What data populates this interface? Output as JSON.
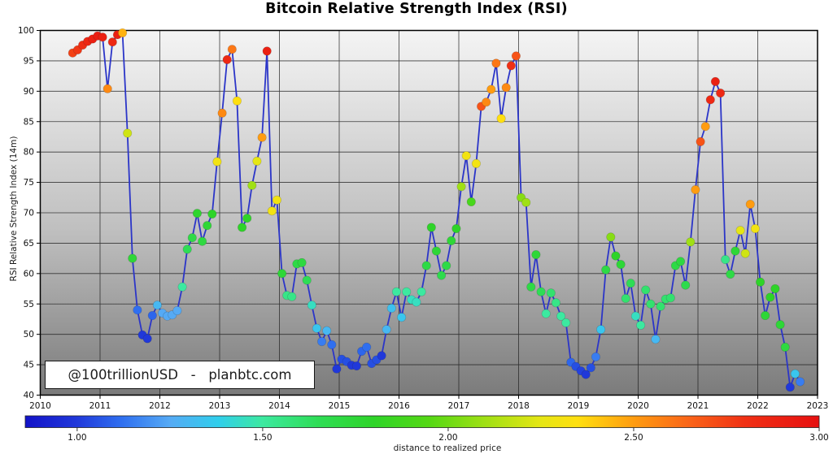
{
  "page": {
    "title": "Bitcoin Relative Strength Index (RSI)"
  },
  "watermark": {
    "text": "@100trillionUSD   -   planbtc.com"
  },
  "chart_data": {
    "type": "line",
    "subtype": "monthly scatter-line with colormapped markers",
    "title": "Bitcoin Relative Strength Index (RSI)",
    "xlabel": "",
    "ylabel": "RSI Relative Strength Index (14m)",
    "grid": true,
    "xlim": [
      2010,
      2023
    ],
    "ylim": [
      40,
      100
    ],
    "x_ticks": [
      2010,
      2011,
      2012,
      2013,
      2014,
      2015,
      2016,
      2017,
      2018,
      2019,
      2020,
      2021,
      2022,
      2023
    ],
    "y_ticks": [
      40,
      45,
      50,
      55,
      60,
      65,
      70,
      75,
      80,
      85,
      90,
      95,
      100
    ],
    "line_color": "#2b35c8",
    "marker_diameter_px": 10.5,
    "x_start_month": "2010-07",
    "x_step_months": 1,
    "series": [
      {
        "name": "RSI Relative Strength Index (14m)",
        "values": [
          96.3,
          96.8,
          97.6,
          98.2,
          98.6,
          99.1,
          98.9,
          90.4,
          98.1,
          99.3,
          99.6,
          83.1,
          62.5,
          54.0,
          49.9,
          49.3,
          53.1,
          54.8,
          53.5,
          53.0,
          53.2,
          53.9,
          57.8,
          64.0,
          65.9,
          69.9,
          65.3,
          67.9,
          69.8,
          78.4,
          86.4,
          95.2,
          96.9,
          88.4,
          67.6,
          69.1,
          74.5,
          78.5,
          82.4,
          96.6,
          70.3,
          72.1,
          60.0,
          56.4,
          56.2,
          61.6,
          61.8,
          58.9,
          54.8,
          51.0,
          48.8,
          50.6,
          48.3,
          44.3,
          45.9,
          45.5,
          44.9,
          44.8,
          47.2,
          47.9,
          45.2,
          45.8,
          46.5,
          50.8,
          54.3,
          57.0,
          52.8,
          57.0,
          55.7,
          55.3,
          57.0,
          61.3,
          67.6,
          63.7,
          59.7,
          61.3,
          65.4,
          67.4,
          74.3,
          79.4,
          71.8,
          78.1,
          87.5,
          88.2,
          90.3,
          94.6,
          85.5,
          90.6,
          94.2,
          95.8,
          72.5,
          71.7,
          57.8,
          63.1,
          57.0,
          53.4,
          56.8,
          55.2,
          53.0,
          51.9,
          45.4,
          44.7,
          44.0,
          43.4,
          44.5,
          46.3,
          50.8,
          60.6,
          66.0,
          62.9,
          61.5,
          55.9,
          58.4,
          53.0,
          51.5,
          57.3,
          55.0,
          49.2,
          54.6,
          55.8,
          56.0,
          61.3,
          62.0,
          58.1,
          65.2,
          73.8,
          81.7,
          84.2,
          88.6,
          91.6,
          89.7,
          62.3,
          59.9,
          63.7,
          67.1,
          63.3,
          71.4,
          67.4,
          58.6,
          53.1,
          56.1,
          57.5,
          51.6,
          47.9,
          41.3,
          43.5,
          42.2
        ],
        "color_values": [
          2.75,
          2.78,
          2.82,
          2.86,
          2.9,
          2.92,
          2.9,
          2.55,
          2.85,
          2.9,
          2.45,
          2.2,
          1.75,
          1.12,
          1.0,
          1.0,
          1.1,
          1.3,
          1.25,
          1.25,
          1.25,
          1.25,
          1.5,
          1.65,
          1.7,
          1.78,
          1.72,
          1.75,
          1.8,
          2.3,
          2.55,
          2.85,
          2.6,
          2.35,
          1.8,
          1.8,
          2.1,
          2.25,
          2.5,
          2.9,
          2.3,
          2.3,
          1.75,
          1.55,
          1.55,
          1.7,
          1.72,
          1.65,
          1.45,
          1.35,
          1.15,
          1.3,
          1.12,
          1.0,
          1.05,
          1.05,
          1.0,
          1.0,
          1.1,
          1.12,
          1.05,
          1.05,
          1.0,
          1.3,
          1.33,
          1.5,
          1.35,
          1.5,
          1.45,
          1.45,
          1.5,
          1.7,
          1.8,
          1.75,
          1.68,
          1.7,
          1.75,
          1.8,
          2.1,
          2.3,
          1.9,
          2.3,
          2.7,
          2.55,
          2.5,
          2.6,
          2.35,
          2.55,
          2.8,
          2.7,
          2.05,
          2.1,
          1.7,
          1.75,
          1.65,
          1.5,
          1.6,
          1.55,
          1.5,
          1.5,
          1.1,
          1.05,
          1.02,
          1.0,
          1.05,
          1.15,
          1.35,
          1.7,
          2.05,
          1.8,
          1.75,
          1.6,
          1.65,
          1.45,
          1.5,
          1.6,
          1.6,
          1.3,
          1.6,
          1.6,
          1.6,
          1.7,
          1.72,
          1.68,
          2.1,
          2.5,
          2.7,
          2.5,
          2.85,
          2.9,
          2.85,
          1.55,
          1.7,
          1.75,
          2.25,
          2.2,
          2.5,
          2.3,
          1.8,
          1.75,
          1.8,
          1.8,
          1.75,
          1.72,
          1.0,
          1.35,
          1.15
        ]
      }
    ],
    "colorbar": {
      "label": "distance to realized price",
      "min": 0.86,
      "max": 3.0,
      "ticks": [
        1.0,
        1.5,
        2.0,
        2.5,
        3.0
      ],
      "tick_labels": [
        "1.00",
        "1.50",
        "2.00",
        "2.50",
        "3.00"
      ],
      "colormap": [
        [
          0.86,
          "#1212c8"
        ],
        [
          1.0,
          "#2038da"
        ],
        [
          1.12,
          "#2f6ff0"
        ],
        [
          1.25,
          "#55aaf5"
        ],
        [
          1.38,
          "#30ceec"
        ],
        [
          1.5,
          "#3ce9a0"
        ],
        [
          1.65,
          "#2edd55"
        ],
        [
          1.8,
          "#2ed428"
        ],
        [
          1.95,
          "#55d814"
        ],
        [
          2.1,
          "#a0e014"
        ],
        [
          2.25,
          "#e6e614"
        ],
        [
          2.35,
          "#ffdf10"
        ],
        [
          2.5,
          "#ff9c10"
        ],
        [
          2.65,
          "#fa6418"
        ],
        [
          2.8,
          "#f03014"
        ],
        [
          3.0,
          "#e61010"
        ]
      ]
    },
    "plot_background": {
      "top_color": "#f4f4f4",
      "mid_color": "#bfbfbf",
      "bottom_color": "#7b7b7b"
    }
  }
}
